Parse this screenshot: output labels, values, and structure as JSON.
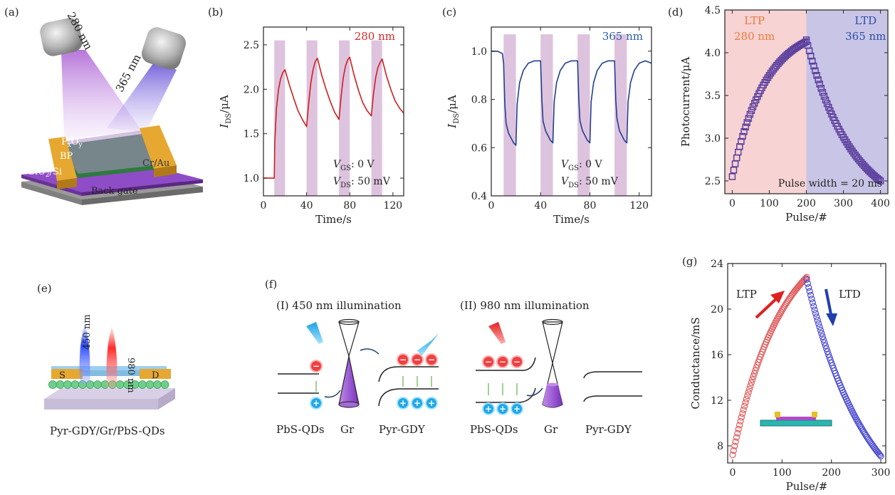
{
  "panel_labels": [
    "(a)",
    "(b)",
    "(c)",
    "(d)",
    "(e)",
    "(f)",
    "(g)"
  ],
  "panel_a": {
    "beam1": "280 nm",
    "beam2": "365 nm",
    "top_layer": "P",
    "top_layer_sub1": "x",
    "top_layer_mid": "O",
    "top_layer_sub2": "y",
    "channel": "BP",
    "electrode": "Cr/Au",
    "substrate": "SiO",
    "substrate_sub": "2",
    "substrate_end": "/Si",
    "gate": "Back gate"
  },
  "panel_e": {
    "beam1": "450 nm",
    "beam2": "980 nm",
    "source": "S",
    "drain": "D",
    "caption": "Pyr-GDY/Gr/PbS-QDs"
  },
  "panel_f": {
    "title1": "(I) 450 nm illumination",
    "title2": "(II) 980 nm illumination",
    "labels1": [
      "PbS-QDs",
      "Gr",
      "Pyr-GDY"
    ],
    "labels2": [
      "PbS-QDs",
      "Gr",
      "Pyr-GDY"
    ],
    "electron_sign": "−",
    "hole_sign": "+"
  },
  "chart_data": [
    {
      "id": "b",
      "type": "line",
      "title": "280 nm",
      "title_color": "#d62728",
      "xlabel": "Time/s",
      "ylabel_main": "I",
      "ylabel_sub": "DS",
      "ylabel_unit": "/μA",
      "xlim": [
        0,
        130
      ],
      "ylim": [
        0.8,
        2.7
      ],
      "xticks": [
        0,
        40,
        80,
        120
      ],
      "yticks": [
        1.0,
        1.5,
        2.0,
        2.5
      ],
      "ytick_labels": [
        "1.0",
        "1.5",
        "2.0",
        "2.5"
      ],
      "line_color": "#cc1f1f",
      "pulse_color": "#d8b8d8",
      "pulses": [
        [
          10,
          20
        ],
        [
          40,
          50
        ],
        [
          70,
          80
        ],
        [
          100,
          110
        ]
      ],
      "pulse_top": 2.55,
      "conditions": [
        {
          "main": "V",
          "sub": "GS",
          "rest": ": 0 V"
        },
        {
          "main": "V",
          "sub": "DS",
          "rest": ": 50 mV"
        }
      ],
      "series": [
        {
          "x": [
            0,
            8,
            10,
            10.5,
            12,
            14,
            16,
            18,
            20,
            24,
            28,
            32,
            36,
            40,
            42,
            44,
            46,
            48,
            50,
            54,
            58,
            62,
            66,
            70,
            72,
            74,
            76,
            78,
            80,
            84,
            88,
            92,
            96,
            100,
            102,
            104,
            106,
            108,
            110,
            114,
            118,
            122,
            126,
            130
          ],
          "y": [
            1.0,
            1.0,
            1.0,
            1.4,
            1.78,
            2.0,
            2.12,
            2.19,
            2.22,
            2.05,
            1.9,
            1.76,
            1.66,
            1.58,
            1.85,
            2.08,
            2.22,
            2.31,
            2.35,
            2.16,
            2.0,
            1.86,
            1.74,
            1.66,
            1.92,
            2.13,
            2.26,
            2.33,
            2.36,
            2.16,
            1.99,
            1.85,
            1.76,
            1.7,
            1.95,
            2.13,
            2.24,
            2.3,
            2.34,
            2.15,
            2.0,
            1.87,
            1.79,
            1.73
          ]
        }
      ]
    },
    {
      "id": "c",
      "type": "line",
      "title": "365 nm",
      "title_color": "#2a5ca8",
      "xlabel": "Time/s",
      "ylabel_main": "I",
      "ylabel_sub": "DS",
      "ylabel_unit": "/μA",
      "xlim": [
        0,
        130
      ],
      "ylim": [
        0.4,
        1.1
      ],
      "xticks": [
        0,
        40,
        80,
        120
      ],
      "yticks": [
        0.4,
        0.6,
        0.8,
        1.0
      ],
      "ytick_labels": [
        "0.4",
        "0.6",
        "0.8",
        "1.0"
      ],
      "line_color": "#1f3f8f",
      "pulse_color": "#d8b8d8",
      "pulses": [
        [
          10,
          20
        ],
        [
          40,
          50
        ],
        [
          70,
          80
        ],
        [
          100,
          110
        ]
      ],
      "pulse_top": 1.07,
      "conditions": [
        {
          "main": "V",
          "sub": "GS",
          "rest": ": 0 V"
        },
        {
          "main": "V",
          "sub": "DS",
          "rest": ": 50 mV"
        }
      ],
      "series": [
        {
          "x": [
            0,
            5,
            9,
            10,
            11,
            12,
            14,
            16,
            18,
            20,
            21,
            23,
            26,
            30,
            35,
            40,
            41,
            42,
            44,
            46,
            48,
            50,
            51,
            53,
            56,
            60,
            65,
            70,
            71,
            72,
            74,
            76,
            78,
            80,
            81,
            83,
            86,
            90,
            95,
            100,
            101,
            102,
            104,
            106,
            108,
            110,
            111,
            113,
            116,
            120,
            125,
            130
          ],
          "y": [
            1.0,
            1.0,
            0.99,
            0.95,
            0.78,
            0.7,
            0.66,
            0.64,
            0.62,
            0.61,
            0.78,
            0.87,
            0.92,
            0.95,
            0.96,
            0.96,
            0.8,
            0.71,
            0.67,
            0.65,
            0.63,
            0.62,
            0.79,
            0.87,
            0.92,
            0.95,
            0.96,
            0.96,
            0.8,
            0.71,
            0.67,
            0.65,
            0.63,
            0.62,
            0.79,
            0.87,
            0.92,
            0.95,
            0.96,
            0.96,
            0.8,
            0.72,
            0.67,
            0.65,
            0.63,
            0.62,
            0.79,
            0.87,
            0.92,
            0.95,
            0.96,
            0.95
          ]
        }
      ]
    },
    {
      "id": "d",
      "type": "scatter",
      "xlabel": "Pulse/#",
      "ylabel": "Photocurrent/μA",
      "xlim": [
        -20,
        420
      ],
      "ylim": [
        2.35,
        4.5
      ],
      "xticks": [
        0,
        100,
        200,
        300,
        400
      ],
      "yticks": [
        2.5,
        3.0,
        3.5,
        4.0,
        4.5
      ],
      "ytick_labels": [
        "2.5",
        "3.0",
        "3.5",
        "4.0",
        "4.5"
      ],
      "marker_color": "#5b3f9e",
      "regions": [
        {
          "from": -20,
          "to": 200,
          "color": "#f7d3d3",
          "label1": "LTP",
          "label2": "280 nm",
          "label_color": "#f07a3a"
        },
        {
          "from": 200,
          "to": 420,
          "color": "#c9c5e6",
          "label1": "LTD",
          "label2": "365 nm",
          "label_color": "#2a4fa8"
        }
      ],
      "note": "Pulse width = 20 ms",
      "series": [
        {
          "name": "LTP",
          "x_start": 0,
          "x_end": 200,
          "y_start": 2.55,
          "y_end": 4.13,
          "shape": "saturating"
        },
        {
          "name": "LTD",
          "x_start": 200,
          "x_end": 400,
          "y_start": 4.15,
          "y_end": 2.5,
          "shape": "decaying"
        }
      ]
    },
    {
      "id": "g",
      "type": "scatter",
      "xlabel": "Pulse/#",
      "ylabel": "Conductance/mS",
      "xlim": [
        -10,
        310
      ],
      "ylim": [
        6.5,
        24
      ],
      "xticks": [
        0,
        100,
        200,
        300
      ],
      "yticks": [
        8,
        12,
        16,
        20,
        24
      ],
      "ytick_labels": [
        "8",
        "12",
        "16",
        "20",
        "24"
      ],
      "arrow_labels": [
        {
          "text": "LTP",
          "color": "#e02020"
        },
        {
          "text": "LTD",
          "color": "#1f3fb0"
        }
      ],
      "series": [
        {
          "name": "LTP",
          "color": "#e05a5a",
          "x_start": 0,
          "x_end": 150,
          "y_start": 7.2,
          "y_end": 22.8,
          "shape": "concave"
        },
        {
          "name": "LTD",
          "color": "#4a4ad0",
          "x_start": 150,
          "x_end": 300,
          "y_start": 22.6,
          "y_end": 7.1,
          "shape": "convex"
        }
      ]
    }
  ]
}
